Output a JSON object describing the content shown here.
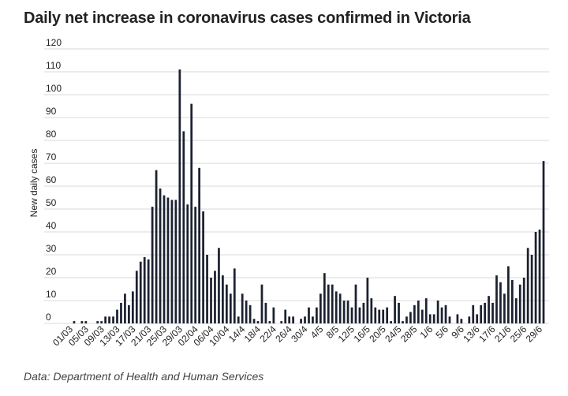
{
  "chart_data": {
    "type": "bar",
    "title": "Daily net increase in coronavirus cases confirmed in Victoria",
    "source": "Data: Department of Health and Human Services",
    "ylabel": "New daily cases",
    "xlabel": "",
    "ylim": [
      0,
      120
    ],
    "yticks": [
      0,
      10,
      20,
      30,
      40,
      50,
      60,
      70,
      80,
      90,
      100,
      110,
      120
    ],
    "grid": true,
    "start_date": "2020-03-01",
    "xtick_labels": [
      "01/03",
      "05/03",
      "09/03",
      "13/03",
      "17/03",
      "21/03",
      "25/03",
      "29/03",
      "02/04",
      "06/04",
      "10/04",
      "14/4",
      "18/4",
      "22/4",
      "26/4",
      "30/4",
      "4/5",
      "8/5",
      "12/5",
      "16/5",
      "20/5",
      "24/5",
      "28/5",
      "1/6",
      "5/6",
      "9/6",
      "13/6",
      "17/6",
      "21/6",
      "25/6",
      "29/6"
    ],
    "values": [
      0,
      1,
      0,
      1,
      1,
      0,
      0,
      1,
      1,
      3,
      3,
      3,
      6,
      9,
      13,
      8,
      14,
      23,
      27,
      29,
      28,
      51,
      67,
      59,
      56,
      55,
      54,
      54,
      111,
      84,
      52,
      96,
      51,
      68,
      49,
      30,
      20,
      23,
      33,
      21,
      17,
      13,
      24,
      3,
      13,
      10,
      8,
      2,
      1,
      17,
      9,
      1,
      7,
      0,
      1,
      6,
      3,
      3,
      0,
      2,
      3,
      7,
      3,
      7,
      13,
      22,
      17,
      17,
      14,
      13,
      10,
      10,
      7,
      17,
      7,
      9,
      20,
      11,
      7,
      6,
      6,
      7,
      1,
      12,
      9,
      1,
      3,
      5,
      8,
      10,
      6,
      11,
      4,
      4,
      10,
      7,
      8,
      3,
      0,
      4,
      2,
      0,
      3,
      8,
      4,
      8,
      9,
      12,
      9,
      21,
      18,
      13,
      25,
      19,
      11,
      17,
      20,
      33,
      30,
      40,
      41,
      71
    ]
  }
}
